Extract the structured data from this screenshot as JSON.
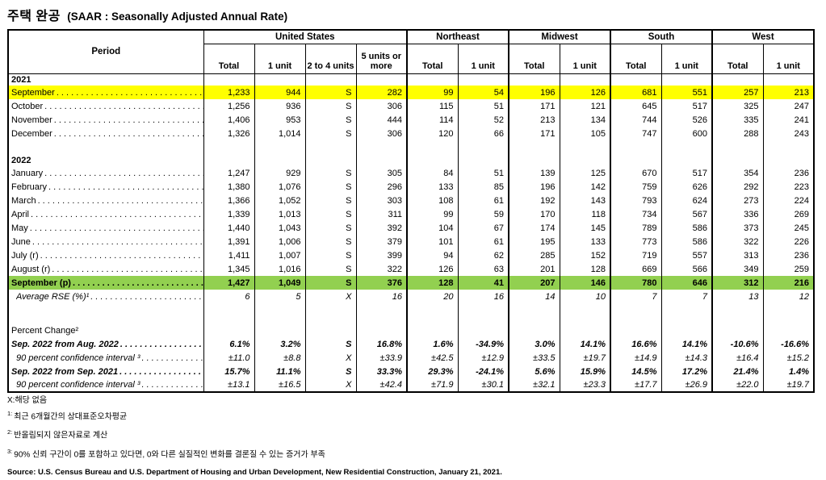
{
  "title": {
    "korean": "주택 완공",
    "subtitle": "(SAAR : Seasonally Adjusted Annual Rate)"
  },
  "colors": {
    "highlight_yellow": "#FFFF00",
    "highlight_green": "#92D050",
    "border": "#000000"
  },
  "table": {
    "period_header": "Period",
    "groups": [
      {
        "label": "United States",
        "cols": [
          "Total",
          "1 unit",
          "2 to 4 units",
          "5 units or more"
        ]
      },
      {
        "label": "Northeast",
        "cols": [
          "Total",
          "1 unit"
        ]
      },
      {
        "label": "Midwest",
        "cols": [
          "Total",
          "1 unit"
        ]
      },
      {
        "label": "South",
        "cols": [
          "Total",
          "1 unit"
        ]
      },
      {
        "label": "West",
        "cols": [
          "Total",
          "1 unit"
        ]
      }
    ],
    "column_keys": [
      "us-total",
      "us-1unit",
      "us-2to4-units",
      "us-5units-or-more",
      "northeast-total",
      "northeast-1unit",
      "midwest-total",
      "midwest-1unit",
      "south-total",
      "south-1unit",
      "west-total",
      "west-1unit"
    ],
    "rows": [
      {
        "cls": "year",
        "label": "2021"
      },
      {
        "cls": "month yellow",
        "label": "September",
        "values": [
          "1,233",
          "944",
          "S",
          "282",
          "99",
          "54",
          "196",
          "126",
          "681",
          "551",
          "257",
          "213"
        ]
      },
      {
        "cls": "month",
        "label": "October",
        "values": [
          "1,256",
          "936",
          "S",
          "306",
          "115",
          "51",
          "171",
          "121",
          "645",
          "517",
          "325",
          "247"
        ]
      },
      {
        "cls": "month",
        "label": "November",
        "values": [
          "1,406",
          "953",
          "S",
          "444",
          "114",
          "52",
          "213",
          "134",
          "744",
          "526",
          "335",
          "241"
        ]
      },
      {
        "cls": "month",
        "label": "December",
        "values": [
          "1,326",
          "1,014",
          "S",
          "306",
          "120",
          "66",
          "171",
          "105",
          "747",
          "600",
          "288",
          "243"
        ]
      },
      {
        "cls": "blank",
        "label": ""
      },
      {
        "cls": "year",
        "label": "2022"
      },
      {
        "cls": "month",
        "label": "January",
        "values": [
          "1,247",
          "929",
          "S",
          "305",
          "84",
          "51",
          "139",
          "125",
          "670",
          "517",
          "354",
          "236"
        ]
      },
      {
        "cls": "month",
        "label": "February",
        "values": [
          "1,380",
          "1,076",
          "S",
          "296",
          "133",
          "85",
          "196",
          "142",
          "759",
          "626",
          "292",
          "223"
        ]
      },
      {
        "cls": "month",
        "label": "March",
        "values": [
          "1,366",
          "1,052",
          "S",
          "303",
          "108",
          "61",
          "192",
          "143",
          "793",
          "624",
          "273",
          "224"
        ]
      },
      {
        "cls": "month",
        "label": "April",
        "values": [
          "1,339",
          "1,013",
          "S",
          "311",
          "99",
          "59",
          "170",
          "118",
          "734",
          "567",
          "336",
          "269"
        ]
      },
      {
        "cls": "month",
        "label": "May",
        "values": [
          "1,440",
          "1,043",
          "S",
          "392",
          "104",
          "67",
          "174",
          "145",
          "789",
          "586",
          "373",
          "245"
        ]
      },
      {
        "cls": "month",
        "label": "June",
        "values": [
          "1,391",
          "1,006",
          "S",
          "379",
          "101",
          "61",
          "195",
          "133",
          "773",
          "586",
          "322",
          "226"
        ]
      },
      {
        "cls": "month",
        "label": "July (r)",
        "values": [
          "1,411",
          "1,007",
          "S",
          "399",
          "94",
          "62",
          "285",
          "152",
          "719",
          "557",
          "313",
          "236"
        ]
      },
      {
        "cls": "month",
        "label": "August (r)",
        "values": [
          "1,345",
          "1,016",
          "S",
          "322",
          "126",
          "63",
          "201",
          "128",
          "669",
          "566",
          "349",
          "259"
        ]
      },
      {
        "cls": "month green",
        "label": "September (p)",
        "values": [
          "1,427",
          "1,049",
          "S",
          "376",
          "128",
          "41",
          "207",
          "146",
          "780",
          "646",
          "312",
          "216"
        ]
      },
      {
        "cls": "rse",
        "label": "Average RSE (%)¹",
        "values": [
          "6",
          "5",
          "X",
          "16",
          "20",
          "16",
          "14",
          "10",
          "7",
          "7",
          "13",
          "12"
        ]
      },
      {
        "cls": "blank blank-lg",
        "label": ""
      },
      {
        "cls": "section",
        "label": "Percent Change²"
      },
      {
        "cls": "pct",
        "label": "Sep. 2022 from Aug. 2022",
        "values": [
          "6.1%",
          "3.2%",
          "S",
          "16.8%",
          "1.6%",
          "-34.9%",
          "3.0%",
          "14.1%",
          "16.6%",
          "14.1%",
          "-10.6%",
          "-16.6%"
        ]
      },
      {
        "cls": "ci",
        "label": "90 percent confidence interval ³",
        "values": [
          "±11.0",
          "±8.8",
          "X",
          "±33.9",
          "±42.5",
          "±12.9",
          "±33.5",
          "±19.7",
          "±14.9",
          "±14.3",
          "±16.4",
          "±15.2"
        ]
      },
      {
        "cls": "pct",
        "label": "Sep. 2022 from Sep. 2021",
        "values": [
          "15.7%",
          "11.1%",
          "S",
          "33.3%",
          "29.3%",
          "-24.1%",
          "5.6%",
          "15.9%",
          "14.5%",
          "17.2%",
          "21.4%",
          "1.4%"
        ]
      },
      {
        "cls": "ci",
        "label": "90 percent confidence interval ³",
        "values": [
          "±13.1",
          "±16.5",
          "X",
          "±42.4",
          "±71.9",
          "±30.1",
          "±32.1",
          "±23.3",
          "±17.7",
          "±26.9",
          "±22.0",
          "±19.7"
        ]
      }
    ]
  },
  "footnotes": [
    {
      "marker": "",
      "text": "X:해당 없음"
    },
    {
      "marker": "1:",
      "text": "최근 6개월간의 상대표준오차평균"
    },
    {
      "marker": "2:",
      "text": "반올림되지 않은자료로 계산"
    },
    {
      "marker": "3:",
      "text": "90% 신뢰 구간이 0를 포함하고 있다면, 0와 다른 실질적인 변화를 결론질 수 있는 증거가 부족"
    }
  ],
  "source": "Source: U.S. Census Bureau and U.S. Department of Housing and Urban Development, New Residential Construction, January 21, 2021."
}
